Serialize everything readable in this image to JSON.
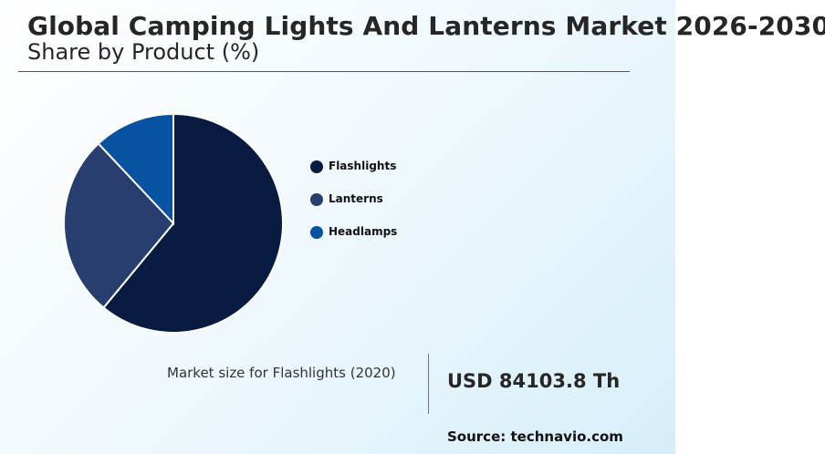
{
  "header": {
    "title": "Global Camping Lights And Lanterns Market 2026-2030",
    "subtitle": "Share by Product (%)"
  },
  "chart_data": {
    "type": "pie",
    "categories": [
      "Flashlights",
      "Lanterns",
      "Headlamps"
    ],
    "values": [
      61,
      27,
      12
    ],
    "unit": "%",
    "colors": [
      "#081c42",
      "#283e6e",
      "#0753a1"
    ],
    "legend_position": "right"
  },
  "market": {
    "label": "Market size for Flashlights (2020)",
    "value": "USD 84103.8 Th"
  },
  "footer": {
    "source": "Source: technavio.com"
  }
}
